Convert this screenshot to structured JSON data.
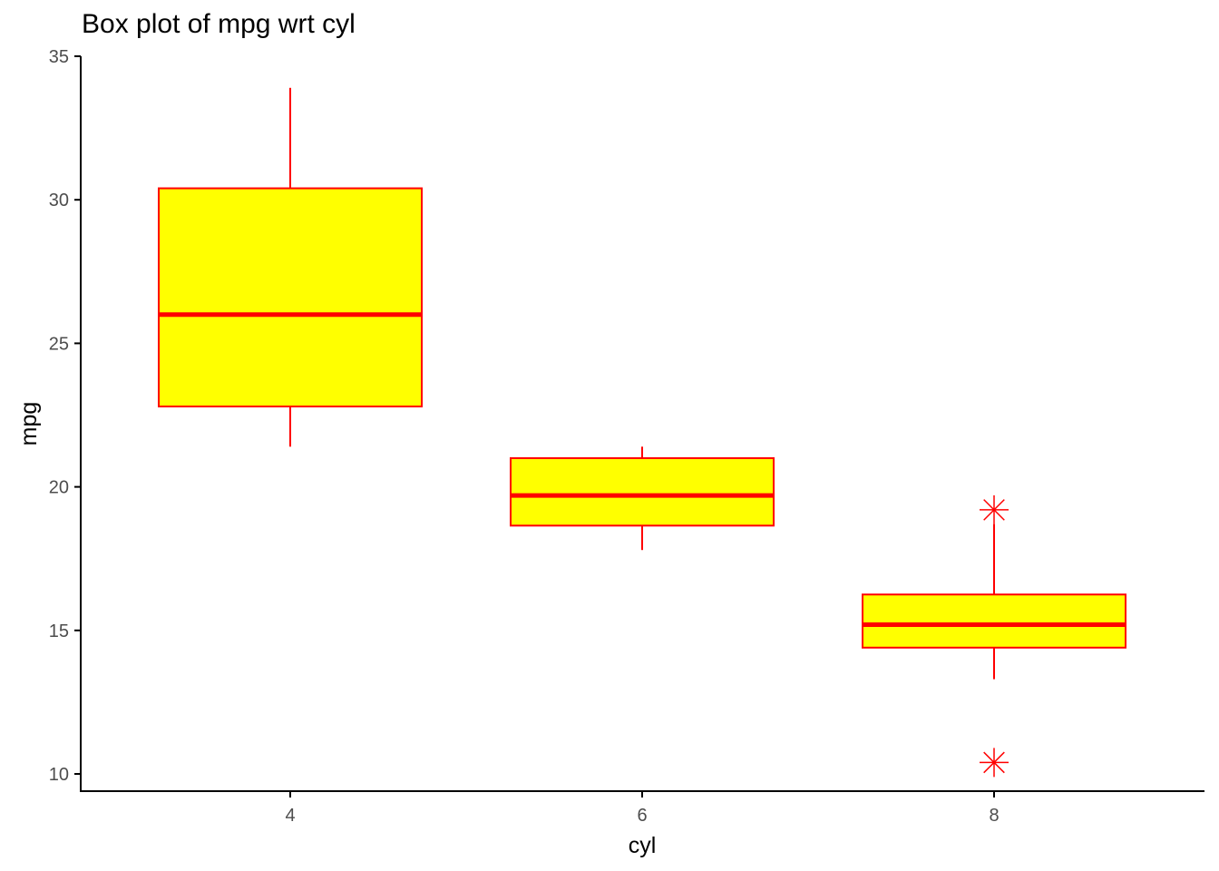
{
  "chart_data": {
    "type": "box",
    "title": "Box plot of mpg wrt cyl",
    "xlabel": "cyl",
    "ylabel": "mpg",
    "x_ticks": [
      "4",
      "6",
      "8"
    ],
    "y_ticks": [
      10,
      15,
      20,
      25,
      30,
      35
    ],
    "ylim": [
      9.4,
      35
    ],
    "grid": false,
    "colors": {
      "box_fill": "#ffff00",
      "box_stroke": "#ff0000",
      "outlier": "#ff0000",
      "axis": "#000000"
    },
    "boxes": [
      {
        "category": "4",
        "min": 21.4,
        "q1": 22.8,
        "median": 26.0,
        "q3": 30.4,
        "max": 33.9,
        "outliers": []
      },
      {
        "category": "6",
        "min": 17.8,
        "q1": 18.65,
        "median": 19.7,
        "q3": 21.0,
        "max": 21.4,
        "outliers": []
      },
      {
        "category": "8",
        "min": 13.3,
        "q1": 14.4,
        "median": 15.2,
        "q3": 16.25,
        "max": 18.7,
        "outliers": [
          19.2,
          10.4
        ]
      }
    ]
  }
}
